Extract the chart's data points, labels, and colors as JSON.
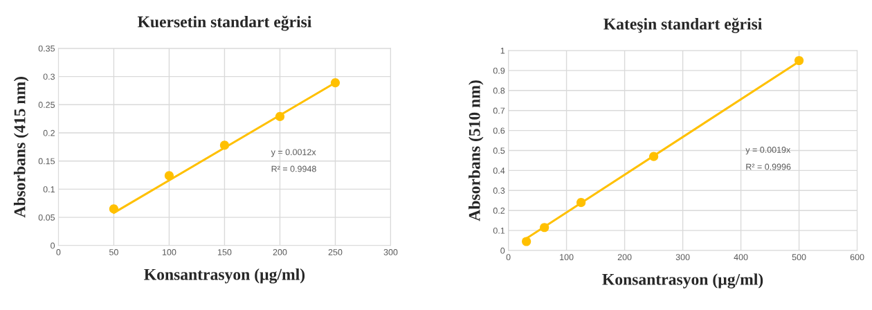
{
  "chart_data": [
    {
      "type": "scatter",
      "title": "Kuersetin standart eğrisi",
      "xlabel": "Konsantrasyon (µg/ml)",
      "ylabel": "Absorbans (415 nm)",
      "x": [
        50,
        100,
        150,
        200,
        250
      ],
      "series": [
        {
          "color": "#ffc000",
          "values": [
            0.065,
            0.124,
            0.178,
            0.229,
            0.289
          ],
          "marker": "circle"
        },
        {
          "type": "line",
          "color": "#ffc000",
          "x": [
            50,
            250
          ],
          "values": [
            0.058,
            0.289
          ],
          "marker": "none",
          "line_style": "solid"
        }
      ],
      "annotations": [
        "y = 0.0012x",
        "R² = 0.9948"
      ],
      "xlim": [
        0,
        300
      ],
      "xticks": [
        0,
        50,
        100,
        150,
        200,
        250,
        300
      ],
      "ylim": [
        0,
        0.35
      ],
      "yticks": [
        0,
        0.05,
        0.1,
        0.15,
        0.2,
        0.25,
        0.3,
        0.35
      ],
      "grid": true,
      "legend": false
    },
    {
      "type": "scatter",
      "title": "Kateşin standart eğrisi",
      "xlabel": "Konsantrasyon (µg/ml)",
      "ylabel": "Absorbans (510 nm)",
      "x": [
        31,
        62,
        125,
        250,
        500
      ],
      "series": [
        {
          "color": "#ffc000",
          "values": [
            0.045,
            0.115,
            0.24,
            0.47,
            0.95
          ],
          "marker": "circle"
        },
        {
          "type": "line",
          "color": "#ffc000",
          "x": [
            31,
            500
          ],
          "values": [
            0.06,
            0.945
          ],
          "marker": "none",
          "line_style": "solid"
        }
      ],
      "annotations": [
        "y = 0.0019x",
        "R² = 0.9996"
      ],
      "xlim": [
        0,
        600
      ],
      "xticks": [
        0,
        100,
        200,
        300,
        400,
        500,
        600
      ],
      "ylim": [
        0,
        1
      ],
      "yticks": [
        0,
        0.1,
        0.2,
        0.3,
        0.4,
        0.5,
        0.6,
        0.7,
        0.8,
        0.9,
        1
      ],
      "grid": true,
      "legend": false
    }
  ]
}
